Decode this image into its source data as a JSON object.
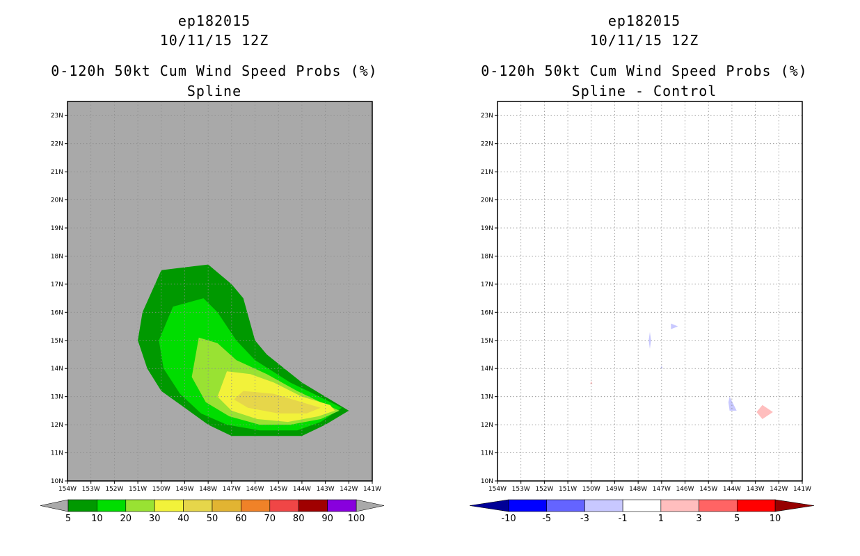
{
  "left_panel": {
    "title_lines": [
      "ep182015",
      "10/11/15 12Z",
      "0-120h 50kt Cum Wind Speed Probs (%)",
      "Spline"
    ]
  },
  "right_panel": {
    "title_lines": [
      "ep182015",
      "10/11/15 12Z",
      "0-120h 50kt Cum Wind Speed Probs (%)",
      "Spline - Control"
    ]
  },
  "colors": {
    "land_gray": "#a9a9a9",
    "grid": "#8c8c8c"
  },
  "chart_data": [
    {
      "type": "heatmap",
      "title": "0-120h 50kt Cum Wind Speed Probs (%)",
      "subtitle": "Spline",
      "storm": "ep182015",
      "date": "10/11/15 12Z",
      "x_ticks": [
        "154W",
        "153W",
        "152W",
        "151W",
        "150W",
        "149W",
        "148W",
        "147W",
        "146W",
        "145W",
        "144W",
        "143W",
        "142W",
        "141W"
      ],
      "y_ticks": [
        "10N",
        "11N",
        "12N",
        "13N",
        "14N",
        "15N",
        "16N",
        "17N",
        "18N",
        "19N",
        "20N",
        "21N",
        "22N",
        "23N"
      ],
      "xlim": [
        -154,
        -141
      ],
      "ylim": [
        10,
        23.5
      ],
      "grid": true,
      "background": "#a9a9a9",
      "contours": [
        {
          "level": 5,
          "color": "#009900",
          "points": [
            [
              -150,
              17.5
            ],
            [
              -148,
              17.7
            ],
            [
              -147,
              17
            ],
            [
              -146.5,
              16.5
            ],
            [
              -146,
              15
            ],
            [
              -145.5,
              14.5
            ],
            [
              -144,
              13.5
            ],
            [
              -143,
              13
            ],
            [
              -142,
              12.5
            ],
            [
              -143,
              12
            ],
            [
              -144,
              11.6
            ],
            [
              -146,
              11.6
            ],
            [
              -147,
              11.6
            ],
            [
              -148,
              12
            ],
            [
              -149,
              12.6
            ],
            [
              -150,
              13.2
            ],
            [
              -150.6,
              14
            ],
            [
              -151,
              15
            ],
            [
              -150.8,
              16
            ]
          ]
        },
        {
          "level": 10,
          "color": "#00dd00",
          "points": [
            [
              -149.5,
              16.2
            ],
            [
              -148.2,
              16.5
            ],
            [
              -147.6,
              16
            ],
            [
              -146.8,
              15
            ],
            [
              -146,
              14.3
            ],
            [
              -144.5,
              13.5
            ],
            [
              -143.5,
              13.1
            ],
            [
              -142.3,
              12.6
            ],
            [
              -143.2,
              12.1
            ],
            [
              -144.2,
              11.8
            ],
            [
              -145.8,
              11.8
            ],
            [
              -147.2,
              12
            ],
            [
              -148.3,
              12.4
            ],
            [
              -149.2,
              13.1
            ],
            [
              -149.9,
              14
            ],
            [
              -150.1,
              15
            ]
          ]
        },
        {
          "level": 20,
          "color": "#99e233",
          "points": [
            [
              -148.4,
              15.1
            ],
            [
              -147.6,
              14.9
            ],
            [
              -146.8,
              14.3
            ],
            [
              -145.5,
              13.8
            ],
            [
              -144.2,
              13.2
            ],
            [
              -143.2,
              12.8
            ],
            [
              -142.4,
              12.5
            ],
            [
              -143.2,
              12.2
            ],
            [
              -144.5,
              12
            ],
            [
              -145.8,
              12
            ],
            [
              -147.1,
              12.3
            ],
            [
              -148.1,
              12.8
            ],
            [
              -148.7,
              13.7
            ]
          ]
        },
        {
          "level": 30,
          "color": "#f2f23a",
          "points": [
            [
              -147.2,
              13.9
            ],
            [
              -146.2,
              13.8
            ],
            [
              -145.2,
              13.5
            ],
            [
              -144,
              13
            ],
            [
              -142.8,
              12.7
            ],
            [
              -142.6,
              12.5
            ],
            [
              -143.3,
              12.3
            ],
            [
              -144.6,
              12.1
            ],
            [
              -145.9,
              12.2
            ],
            [
              -147,
              12.5
            ],
            [
              -147.6,
              13
            ]
          ]
        },
        {
          "level": 40,
          "color": "#e6d64a",
          "points": [
            [
              -146.5,
              13.2
            ],
            [
              -145.2,
              13.1
            ],
            [
              -144,
              12.8
            ],
            [
              -143.2,
              12.6
            ],
            [
              -143.8,
              12.4
            ],
            [
              -145,
              12.4
            ],
            [
              -146.3,
              12.6
            ],
            [
              -146.9,
              12.9
            ]
          ]
        }
      ],
      "colorbar": {
        "labels": [
          "5",
          "10",
          "20",
          "30",
          "40",
          "50",
          "60",
          "70",
          "80",
          "90",
          "100"
        ],
        "colors": [
          "#009900",
          "#00dd00",
          "#99e233",
          "#f2f23a",
          "#e6d64a",
          "#e2b432",
          "#f08228",
          "#f04646",
          "#a00000",
          "#8800dd"
        ],
        "under_color": "#a9a9a9",
        "over_color": "#a9a9a9"
      }
    },
    {
      "type": "heatmap",
      "title": "0-120h 50kt Cum Wind Speed Probs (%)",
      "subtitle": "Spline - Control",
      "storm": "ep182015",
      "date": "10/11/15 12Z",
      "x_ticks": [
        "154W",
        "153W",
        "152W",
        "151W",
        "150W",
        "149W",
        "148W",
        "147W",
        "146W",
        "145W",
        "144W",
        "143W",
        "142W",
        "141W"
      ],
      "y_ticks": [
        "10N",
        "11N",
        "12N",
        "13N",
        "14N",
        "15N",
        "16N",
        "17N",
        "18N",
        "19N",
        "20N",
        "21N",
        "22N",
        "23N"
      ],
      "xlim": [
        -154,
        -141
      ],
      "ylim": [
        10,
        23.5
      ],
      "grid": true,
      "background": "#ffffff",
      "contours": [
        {
          "level": -3,
          "color": "#c8c8ff",
          "points": [
            [
              -147.5,
              15.3
            ],
            [
              -147.45,
              15
            ],
            [
              -147.5,
              14.7
            ],
            [
              -147.55,
              15
            ]
          ]
        },
        {
          "level": -3,
          "color": "#c8c8ff",
          "points": [
            [
              -146.6,
              15.6
            ],
            [
              -146.3,
              15.5
            ],
            [
              -146.6,
              15.4
            ]
          ]
        },
        {
          "level": -3,
          "color": "#c8c8ff",
          "points": [
            [
              -147,
              14.1
            ],
            [
              -146.95,
              14
            ],
            [
              -147.05,
              14
            ]
          ]
        },
        {
          "level": -3,
          "color": "#c8c8ff",
          "points": [
            [
              -144.1,
              13
            ],
            [
              -143.8,
              12.5
            ],
            [
              -144.1,
              12.5
            ],
            [
              -144.15,
              12.8
            ]
          ]
        },
        {
          "level": 1,
          "color": "#ffbebe",
          "points": [
            [
              -142.7,
              12.7
            ],
            [
              -142.25,
              12.45
            ],
            [
              -142.7,
              12.2
            ],
            [
              -142.95,
              12.45
            ]
          ]
        },
        {
          "level": 1,
          "color": "#ffbebe",
          "points": [
            [
              -150,
              13.55
            ],
            [
              -149.95,
              13.45
            ],
            [
              -150.05,
              13.45
            ]
          ]
        }
      ],
      "colorbar": {
        "labels": [
          "-10",
          "-5",
          "-3",
          "-1",
          "1",
          "3",
          "5",
          "10"
        ],
        "colors": [
          "#0000ff",
          "#6464ff",
          "#c8c8ff",
          "#ffffff",
          "#ffbebe",
          "#ff6464",
          "#ff0000"
        ],
        "under_color": "#000096",
        "over_color": "#960000"
      }
    }
  ]
}
